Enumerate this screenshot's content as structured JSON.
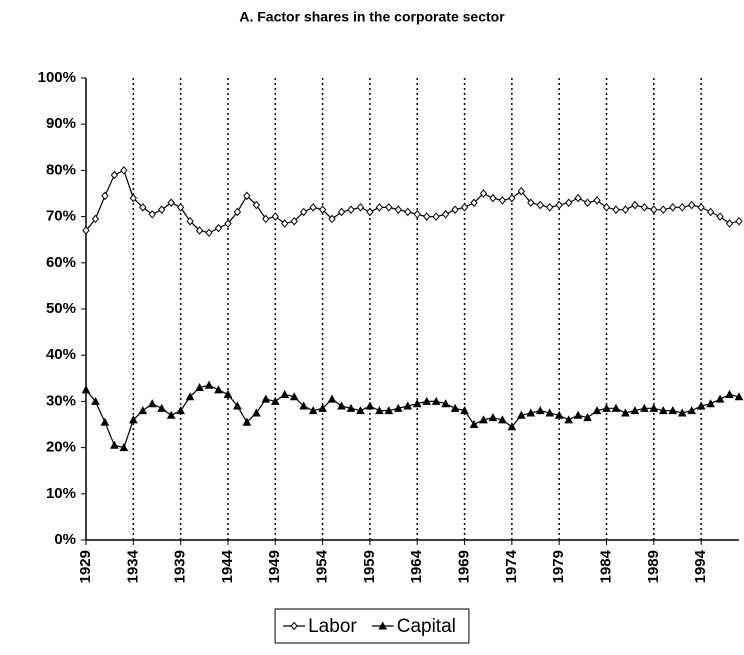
{
  "chart_data": {
    "type": "line",
    "title": "A. Factor shares in the corporate sector",
    "x": [
      1929,
      1930,
      1931,
      1932,
      1933,
      1934,
      1935,
      1936,
      1937,
      1938,
      1939,
      1940,
      1941,
      1942,
      1943,
      1944,
      1945,
      1946,
      1947,
      1948,
      1949,
      1950,
      1951,
      1952,
      1953,
      1954,
      1955,
      1956,
      1957,
      1958,
      1959,
      1960,
      1961,
      1962,
      1963,
      1964,
      1965,
      1966,
      1967,
      1968,
      1969,
      1970,
      1971,
      1972,
      1973,
      1974,
      1975,
      1976,
      1977,
      1978,
      1979,
      1980,
      1981,
      1982,
      1983,
      1984,
      1985,
      1986,
      1987,
      1988,
      1989,
      1990,
      1991,
      1992,
      1993,
      1994,
      1995,
      1996,
      1997,
      1998
    ],
    "series": [
      {
        "name": "Labor",
        "color": "#000000",
        "marker": "diamond",
        "values": [
          67,
          69.5,
          74.5,
          79,
          80,
          74,
          72,
          70.5,
          71.5,
          73,
          72,
          69,
          67,
          66.5,
          67.5,
          68.5,
          71,
          74.5,
          72.5,
          69.5,
          70,
          68.5,
          69,
          71,
          72,
          71.5,
          69.5,
          71,
          71.5,
          72,
          71,
          72,
          72,
          71.5,
          71,
          70.5,
          70,
          70,
          70.5,
          71.5,
          72,
          73,
          75,
          74,
          73.5,
          74,
          75.5,
          73,
          72.5,
          72,
          72.5,
          73,
          74,
          73,
          73.5,
          72,
          71.5,
          71.5,
          72.5,
          72,
          71.5,
          71.5,
          72,
          72,
          72.5,
          72,
          71,
          70,
          68.5,
          69
        ]
      },
      {
        "name": "Capital",
        "color": "#000000",
        "marker": "triangle",
        "values": [
          32.5,
          30,
          25.5,
          20.5,
          20,
          26,
          28,
          29.5,
          28.5,
          27,
          28,
          31,
          33,
          33.5,
          32.5,
          31.5,
          29,
          25.5,
          27.5,
          30.5,
          30,
          31.5,
          31,
          29,
          28,
          28.5,
          30.5,
          29,
          28.5,
          28,
          29,
          28,
          28,
          28.5,
          29,
          29.5,
          30,
          30,
          29.5,
          28.5,
          28,
          25,
          26,
          26.5,
          26,
          24.5,
          27,
          27.5,
          28,
          27.5,
          27,
          26,
          27,
          26.5,
          28,
          28.5,
          28.5,
          27.5,
          28,
          28.5,
          28.5,
          28,
          28,
          27.5,
          28,
          29,
          29.5,
          30.5,
          31.5,
          31
        ]
      }
    ],
    "xlim": [
      1929,
      1998
    ],
    "xticks": [
      1929,
      1934,
      1939,
      1944,
      1949,
      1954,
      1959,
      1964,
      1969,
      1974,
      1979,
      1984,
      1989,
      1994
    ],
    "ylim": [
      0,
      100
    ],
    "yticks": [
      {
        "value": 0,
        "label": "0%"
      },
      {
        "value": 10,
        "label": "10%"
      },
      {
        "value": 20,
        "label": "20%"
      },
      {
        "value": 30,
        "label": "30%"
      },
      {
        "value": 40,
        "label": "40%"
      },
      {
        "value": 50,
        "label": "50%"
      },
      {
        "value": 60,
        "label": "60%"
      },
      {
        "value": 70,
        "label": "70%"
      },
      {
        "value": 80,
        "label": "80%"
      },
      {
        "value": 90,
        "label": "90%"
      },
      {
        "value": 100,
        "label": "100%"
      }
    ],
    "grid": true,
    "legend": "bottom"
  }
}
